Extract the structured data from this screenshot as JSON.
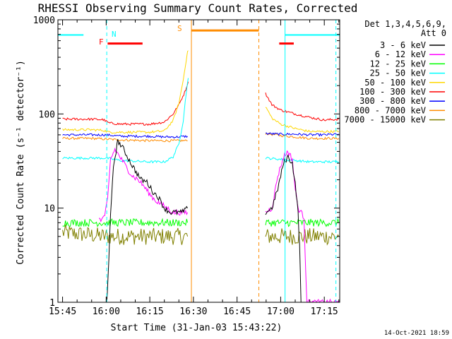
{
  "title": "RHESSI Observing Summary Count Rates, Corrected",
  "footer_date": "14-Oct-2021 18:59",
  "legend": {
    "header_line1": "Det 1,3,4,5,6,9,",
    "header_line2": "Att 0"
  },
  "markers": {
    "night": "N",
    "flare": "F",
    "saa": "S"
  },
  "chart_data": {
    "type": "line",
    "title": "RHESSI Observing Summary Count Rates, Corrected",
    "xlabel": "Start Time (31-Jan-03 15:43:22)",
    "ylabel": "Corrected Count Rate (s⁻¹ detector⁻¹)",
    "xlim_minutes": [
      -1.6,
      95.3
    ],
    "ylim": [
      1,
      1000
    ],
    "yscale": "log",
    "grid": false,
    "legend_position": "top-right",
    "x_ticks": [
      {
        "t": 0,
        "label": "15:45"
      },
      {
        "t": 15,
        "label": "16:00"
      },
      {
        "t": 30,
        "label": "16:15"
      },
      {
        "t": 45,
        "label": "16:30"
      },
      {
        "t": 60,
        "label": "16:45"
      },
      {
        "t": 75,
        "label": "17:00"
      },
      {
        "t": 90,
        "label": "17:15"
      }
    ],
    "y_ticks": [
      {
        "v": 1,
        "label": "1"
      },
      {
        "v": 10,
        "label": "10"
      },
      {
        "v": 100,
        "label": "100"
      },
      {
        "v": 1000,
        "label": "1000"
      }
    ],
    "gaps": [
      [
        43.3,
        69.5
      ]
    ],
    "series": [
      {
        "name": "3 - 6 keV",
        "color": "#000000",
        "points": [
          [
            15.2,
            1.0
          ],
          [
            15.6,
            1.8
          ],
          [
            16.5,
            8
          ],
          [
            17.5,
            28
          ],
          [
            19,
            52
          ],
          [
            21,
            42
          ],
          [
            23,
            32
          ],
          [
            25,
            25
          ],
          [
            27,
            20
          ],
          [
            29,
            19
          ],
          [
            31,
            15
          ],
          [
            33,
            13
          ],
          [
            35,
            10
          ],
          [
            37,
            9
          ],
          [
            39,
            9
          ],
          [
            41,
            9
          ],
          [
            42.3,
            9.5
          ],
          [
            43,
            10
          ]
        ],
        "points2": [
          [
            69.8,
            9
          ],
          [
            72,
            10
          ],
          [
            74,
            16
          ],
          [
            76,
            30
          ],
          [
            77.5,
            35
          ],
          [
            79,
            30
          ],
          [
            80,
            18
          ],
          [
            81,
            9
          ],
          [
            81.5,
            4
          ],
          [
            82,
            1.0
          ]
        ]
      },
      {
        "name": "6 - 12 keV",
        "color": "#ff00ff",
        "points": [
          [
            12.5,
            8
          ],
          [
            13.5,
            7.5
          ],
          [
            14.5,
            8.5
          ],
          [
            15.5,
            12
          ],
          [
            16.5,
            33
          ],
          [
            18,
            42
          ],
          [
            20,
            34
          ],
          [
            22,
            27
          ],
          [
            24,
            22
          ],
          [
            26,
            20
          ],
          [
            28,
            17
          ],
          [
            30,
            14
          ],
          [
            32,
            12
          ],
          [
            34,
            11
          ],
          [
            36,
            10
          ],
          [
            38,
            9
          ],
          [
            40,
            9
          ],
          [
            42,
            9
          ],
          [
            43,
            9
          ]
        ],
        "points2": [
          [
            69.8,
            9
          ],
          [
            72,
            10
          ],
          [
            74,
            22
          ],
          [
            76,
            35
          ],
          [
            77.5,
            40
          ],
          [
            79,
            33
          ],
          [
            80,
            16
          ],
          [
            81,
            10
          ],
          [
            82,
            9
          ],
          [
            83,
            8
          ],
          [
            84,
            1.0
          ],
          [
            95,
            1.0
          ]
        ]
      },
      {
        "name": "12 - 25 keV",
        "color": "#00ff00",
        "points": [
          [
            0,
            7
          ],
          [
            15,
            7
          ],
          [
            20,
            7
          ],
          [
            30,
            7
          ],
          [
            40,
            7
          ],
          [
            43,
            7
          ]
        ],
        "points2": [
          [
            69.8,
            7
          ],
          [
            80,
            7
          ],
          [
            90,
            7
          ],
          [
            95,
            7
          ]
        ]
      },
      {
        "name": "25 - 50 keV",
        "color": "#00ffff",
        "points": [
          [
            0,
            34
          ],
          [
            10,
            34
          ],
          [
            15,
            34
          ],
          [
            20,
            32
          ],
          [
            30,
            31
          ],
          [
            35,
            31
          ],
          [
            38,
            35
          ],
          [
            40,
            48
          ],
          [
            41.5,
            85
          ],
          [
            42.5,
            165
          ],
          [
            43.2,
            240
          ]
        ],
        "points2": [
          [
            69.8,
            34
          ],
          [
            75,
            33
          ],
          [
            80,
            32
          ],
          [
            85,
            31
          ],
          [
            90,
            31
          ],
          [
            95,
            31
          ]
        ]
      },
      {
        "name": "50 - 100 keV",
        "color": "#ffd700",
        "points": [
          [
            0,
            68
          ],
          [
            10,
            68
          ],
          [
            14,
            67
          ],
          [
            16,
            64
          ],
          [
            20,
            64
          ],
          [
            30,
            64
          ],
          [
            35,
            66
          ],
          [
            38,
            85
          ],
          [
            40,
            130
          ],
          [
            41.5,
            230
          ],
          [
            42.8,
            430
          ],
          [
            43.2,
            470
          ]
        ],
        "points2": [
          [
            69.8,
            120
          ],
          [
            72,
            90
          ],
          [
            75,
            78
          ],
          [
            80,
            70
          ],
          [
            85,
            65
          ],
          [
            90,
            65
          ],
          [
            95,
            65
          ]
        ]
      },
      {
        "name": "100 - 300 keV",
        "color": "#ff0000",
        "points": [
          [
            0,
            88
          ],
          [
            10,
            88
          ],
          [
            14,
            87
          ],
          [
            16,
            80
          ],
          [
            20,
            78
          ],
          [
            30,
            78
          ],
          [
            35,
            82
          ],
          [
            38,
            100
          ],
          [
            40,
            125
          ],
          [
            42,
            170
          ],
          [
            43.2,
            220
          ]
        ],
        "points2": [
          [
            69.8,
            165
          ],
          [
            72,
            125
          ],
          [
            75,
            110
          ],
          [
            80,
            100
          ],
          [
            85,
            92
          ],
          [
            90,
            86
          ],
          [
            95,
            88
          ]
        ]
      },
      {
        "name": "300 - 800 keV",
        "color": "#0000ff",
        "points": [
          [
            0,
            60
          ],
          [
            10,
            60
          ],
          [
            15,
            60
          ],
          [
            20,
            58
          ],
          [
            30,
            58
          ],
          [
            35,
            57
          ],
          [
            40,
            57
          ],
          [
            43,
            58
          ]
        ],
        "points2": [
          [
            69.8,
            62
          ],
          [
            75,
            61
          ],
          [
            80,
            61
          ],
          [
            85,
            60
          ],
          [
            90,
            60
          ],
          [
            95,
            61
          ]
        ]
      },
      {
        "name": "800 - 7000 keV",
        "color": "#ff8c00",
        "points": [
          [
            0,
            55
          ],
          [
            10,
            55
          ],
          [
            15,
            54
          ],
          [
            20,
            53
          ],
          [
            30,
            52
          ],
          [
            40,
            52
          ],
          [
            43,
            52
          ]
        ],
        "points2": [
          [
            69.8,
            62
          ],
          [
            75,
            59
          ],
          [
            80,
            57
          ],
          [
            85,
            55
          ],
          [
            90,
            55
          ],
          [
            95,
            55
          ]
        ]
      },
      {
        "name": "7000 - 15000 keV",
        "color": "#808000",
        "points": [
          [
            0,
            5.5
          ],
          [
            15,
            5
          ],
          [
            20,
            5
          ],
          [
            30,
            5
          ],
          [
            40,
            5
          ],
          [
            43,
            5
          ]
        ],
        "points2": [
          [
            69.8,
            5
          ],
          [
            80,
            5
          ],
          [
            90,
            5
          ],
          [
            95,
            5
          ]
        ]
      }
    ],
    "bands": {
      "night": {
        "color": "#00ffff",
        "level": 690,
        "segments": [
          [
            -1.6,
            7.2
          ],
          [
            76.5,
            95.3
          ]
        ],
        "dashed_lines": [
          15.2,
          94.0
        ],
        "solid_lines": [
          76.5
        ]
      },
      "flare": {
        "color": "#ff0000",
        "level": 560,
        "segments": [
          [
            15.5,
            27.5
          ],
          [
            74.5,
            79.5
          ]
        ]
      },
      "saa": {
        "color": "#ff8c00",
        "level": 770,
        "segments": [
          [
            44.3,
            67.5
          ]
        ],
        "solid_lines": [
          44.3
        ],
        "dashed_lines": [
          67.5
        ]
      }
    }
  }
}
